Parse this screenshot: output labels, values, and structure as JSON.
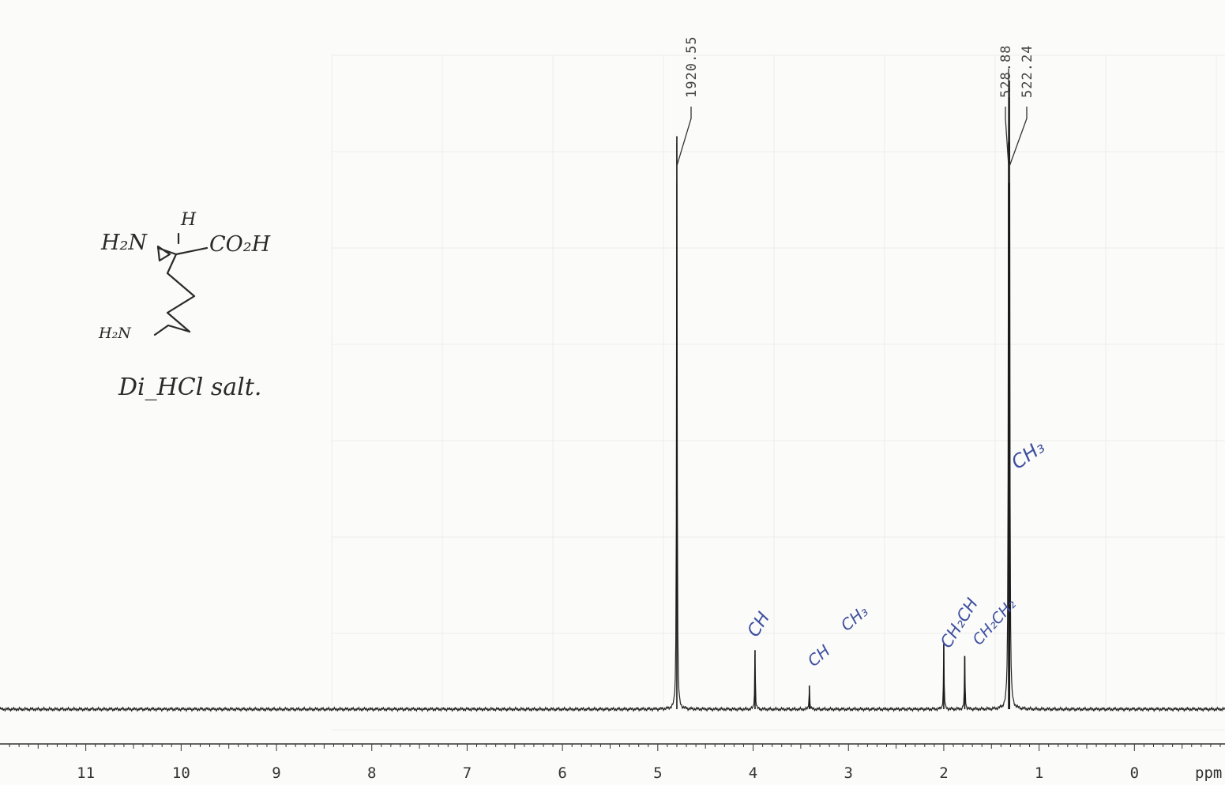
{
  "chart_data": {
    "type": "line",
    "xlabel": "ppm",
    "xlim": [
      11.9,
      -0.95
    ],
    "ticks": [
      {
        "v": 11,
        "label": "11"
      },
      {
        "v": 10,
        "label": "10"
      },
      {
        "v": 9,
        "label": "9"
      },
      {
        "v": 8,
        "label": "8"
      },
      {
        "v": 7,
        "label": "7"
      },
      {
        "v": 6,
        "label": "6"
      },
      {
        "v": 5,
        "label": "5"
      },
      {
        "v": 4,
        "label": "4"
      },
      {
        "v": 3,
        "label": "3"
      },
      {
        "v": 2,
        "label": "2"
      },
      {
        "v": 1,
        "label": "1"
      },
      {
        "v": 0,
        "label": "0"
      }
    ],
    "peaks": [
      {
        "ppm": 4.8,
        "height": 0.97,
        "label": "1920.55"
      },
      {
        "ppm": 3.98,
        "height": 0.1
      },
      {
        "ppm": 3.41,
        "height": 0.04
      },
      {
        "ppm": 2.0,
        "height": 0.11
      },
      {
        "ppm": 1.78,
        "height": 0.09
      },
      {
        "ppm": 1.32,
        "label": "528.88",
        "height": 0.96
      },
      {
        "ppm": 1.31,
        "label": "522.24",
        "height": 0.96
      }
    ],
    "structure_annotation": [
      "H",
      "H₂N",
      "CO₂H",
      "H₂N",
      "Di_HCl salt."
    ],
    "peak_assignments": [
      "CH",
      "CH",
      "CH₃",
      "CH₂CH",
      "CH₂CH₂",
      "CH₃"
    ]
  }
}
